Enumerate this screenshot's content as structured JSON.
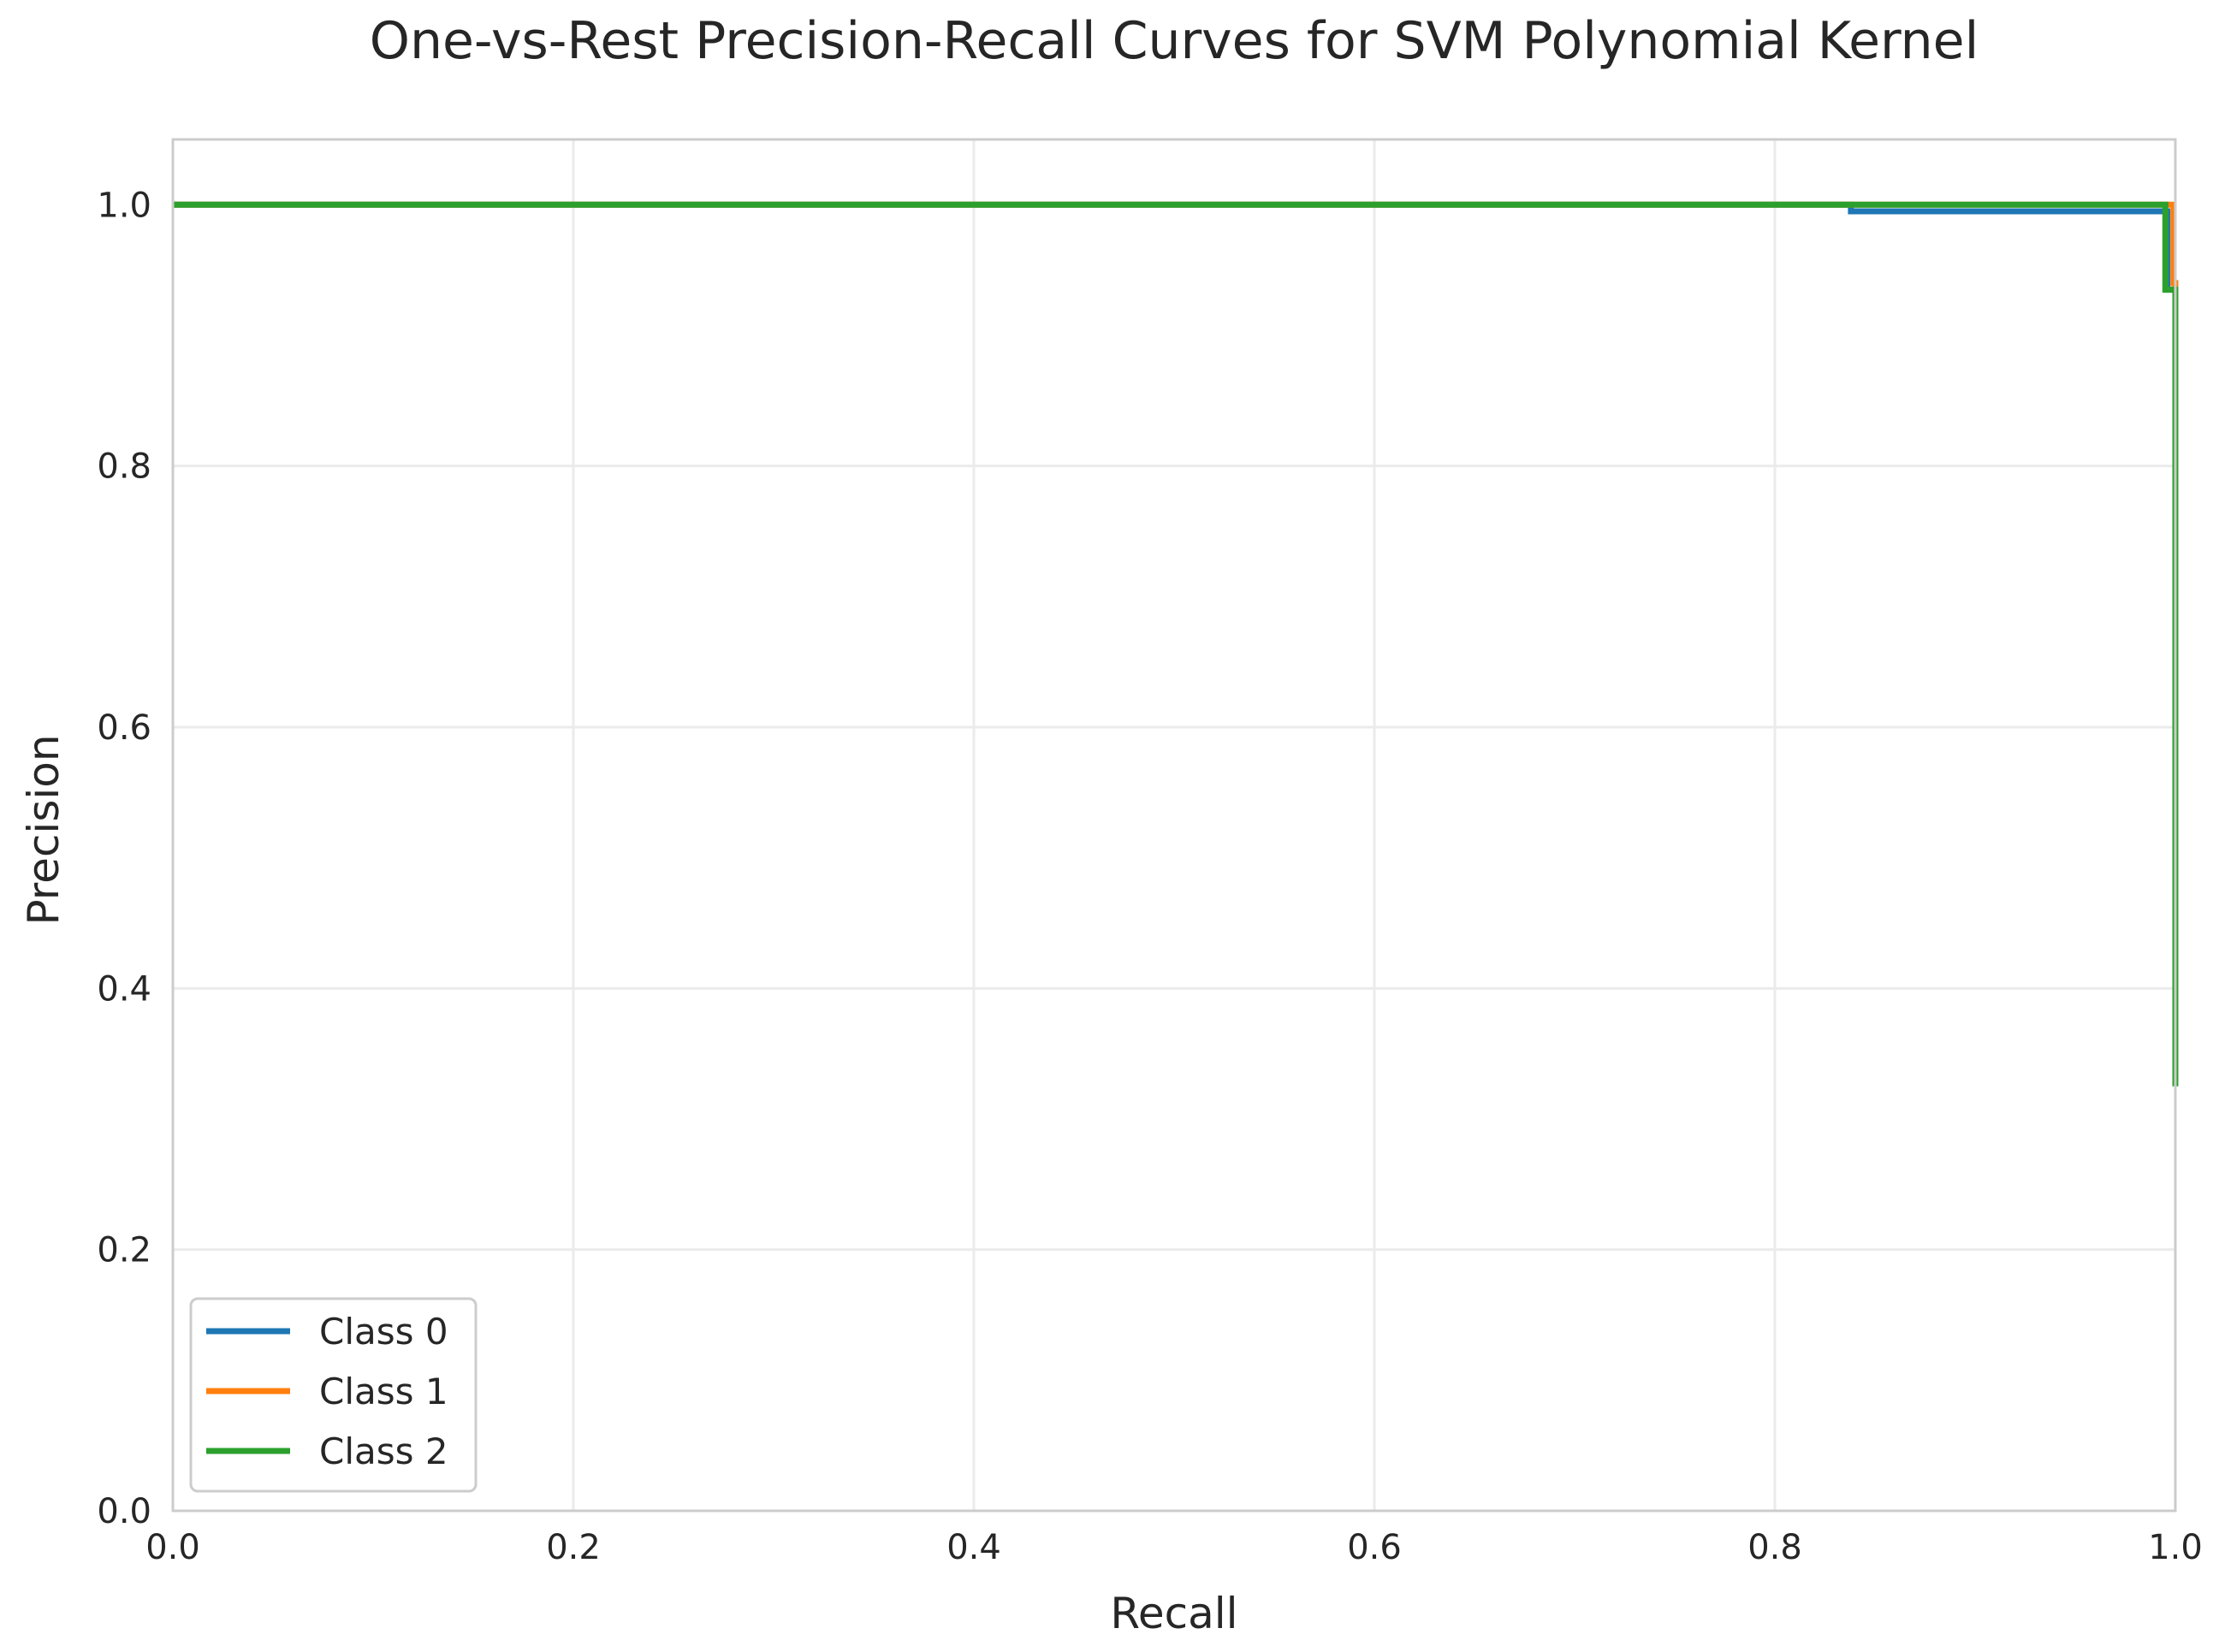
{
  "chart_data": {
    "type": "line",
    "title": "One-vs-Rest Precision-Recall Curves for SVM Polynomial Kernel",
    "xlabel": "Recall",
    "ylabel": "Precision",
    "xlim": [
      0.0,
      1.0
    ],
    "ylim": [
      0.0,
      1.05
    ],
    "xticks": [
      0.0,
      0.2,
      0.4,
      0.6,
      0.8,
      1.0
    ],
    "xtick_labels": [
      "0.0",
      "0.2",
      "0.4",
      "0.6",
      "0.8",
      "1.0"
    ],
    "yticks": [
      0.0,
      0.2,
      0.4,
      0.6,
      0.8,
      1.0
    ],
    "ytick_labels": [
      "0.0",
      "0.2",
      "0.4",
      "0.6",
      "0.8",
      "1.0"
    ],
    "grid": true,
    "legend_position": "lower-left",
    "series": [
      {
        "name": "Class 0",
        "color": "#1f77b4",
        "points": [
          [
            0.0,
            1.0
          ],
          [
            0.838,
            1.0
          ],
          [
            0.838,
            0.995
          ],
          [
            0.996,
            0.995
          ],
          [
            0.996,
            0.935
          ],
          [
            1.0,
            0.935
          ],
          [
            1.0,
            0.33
          ]
        ]
      },
      {
        "name": "Class 1",
        "color": "#ff7f0e",
        "points": [
          [
            0.0,
            1.0
          ],
          [
            0.999,
            1.0
          ],
          [
            0.999,
            0.94
          ],
          [
            1.0,
            0.94
          ],
          [
            1.0,
            0.33
          ]
        ]
      },
      {
        "name": "Class 2",
        "color": "#2ca02c",
        "points": [
          [
            0.0,
            1.0
          ],
          [
            0.995,
            1.0
          ],
          [
            0.995,
            0.935
          ],
          [
            0.999,
            0.935
          ],
          [
            1.0,
            0.935
          ],
          [
            1.0,
            0.325
          ]
        ]
      }
    ]
  }
}
